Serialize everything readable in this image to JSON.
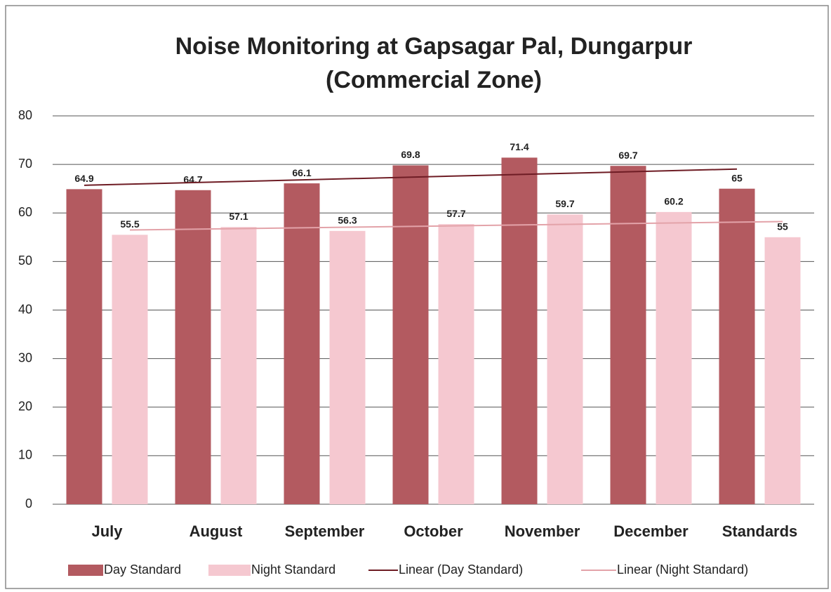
{
  "chart_data": {
    "type": "bar",
    "title": "Noise Monitoring at Gapsagar Pal, Dungarpur",
    "subtitle": "(Commercial Zone)",
    "categories": [
      "July",
      "August",
      "September",
      "October",
      "November",
      "December",
      "Standards"
    ],
    "series": [
      {
        "name": "Day Standard",
        "color": "#b35a60",
        "values": [
          64.9,
          64.7,
          66.1,
          69.8,
          71.4,
          69.7,
          65
        ]
      },
      {
        "name": "Night Standard",
        "color": "#f5c8d0",
        "values": [
          55.5,
          57.1,
          56.3,
          57.7,
          59.7,
          60.2,
          55
        ]
      }
    ],
    "trendlines": [
      {
        "name": "Linear (Day Standard)",
        "color": "#6e1c24"
      },
      {
        "name": "Linear (Night Standard)",
        "color": "#e3a3a9"
      }
    ],
    "ylim": [
      0,
      80
    ],
    "yticks": [
      0,
      10,
      20,
      30,
      40,
      50,
      60,
      70,
      80
    ],
    "grid": true,
    "legend": "bottom"
  }
}
